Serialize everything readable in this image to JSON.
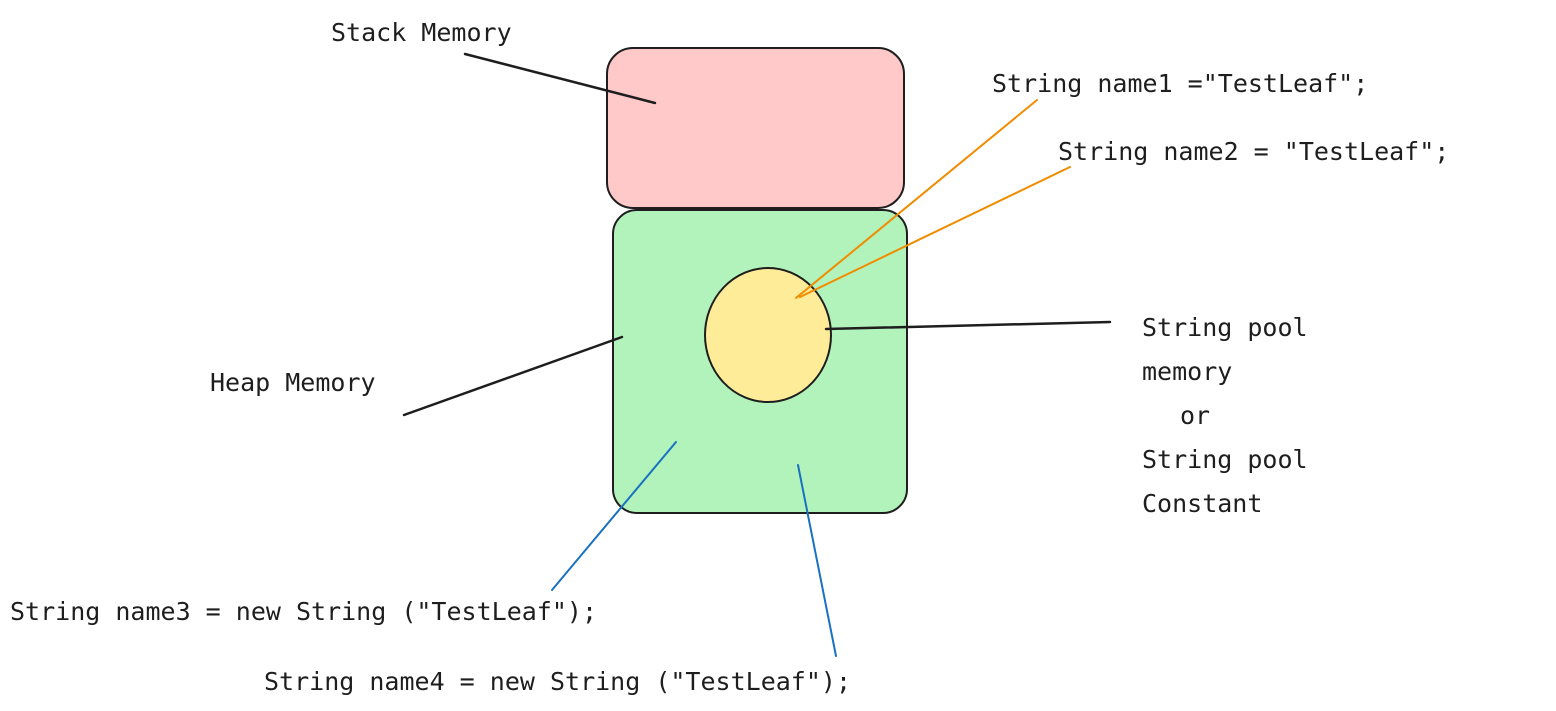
{
  "labels": {
    "stack_memory": "Stack Memory",
    "heap_memory": "Heap Memory",
    "name1": "String name1 =\"TestLeaf\";",
    "name2": "String name2 = \"TestLeaf\";",
    "name3": "String name3 = new String (\"TestLeaf\");",
    "name4": "String name4 = new String (\"TestLeaf\");",
    "pool": [
      "String pool",
      "memory",
      "or",
      "String pool",
      "Constant"
    ]
  },
  "colors": {
    "stack_fill": "#ffc9c9",
    "heap_fill": "#b2f2bb",
    "pool_fill": "#ffec99",
    "stroke": "#1e1e1e",
    "orange_arrow": "#f08c00",
    "blue_arrow": "#1971c2"
  }
}
